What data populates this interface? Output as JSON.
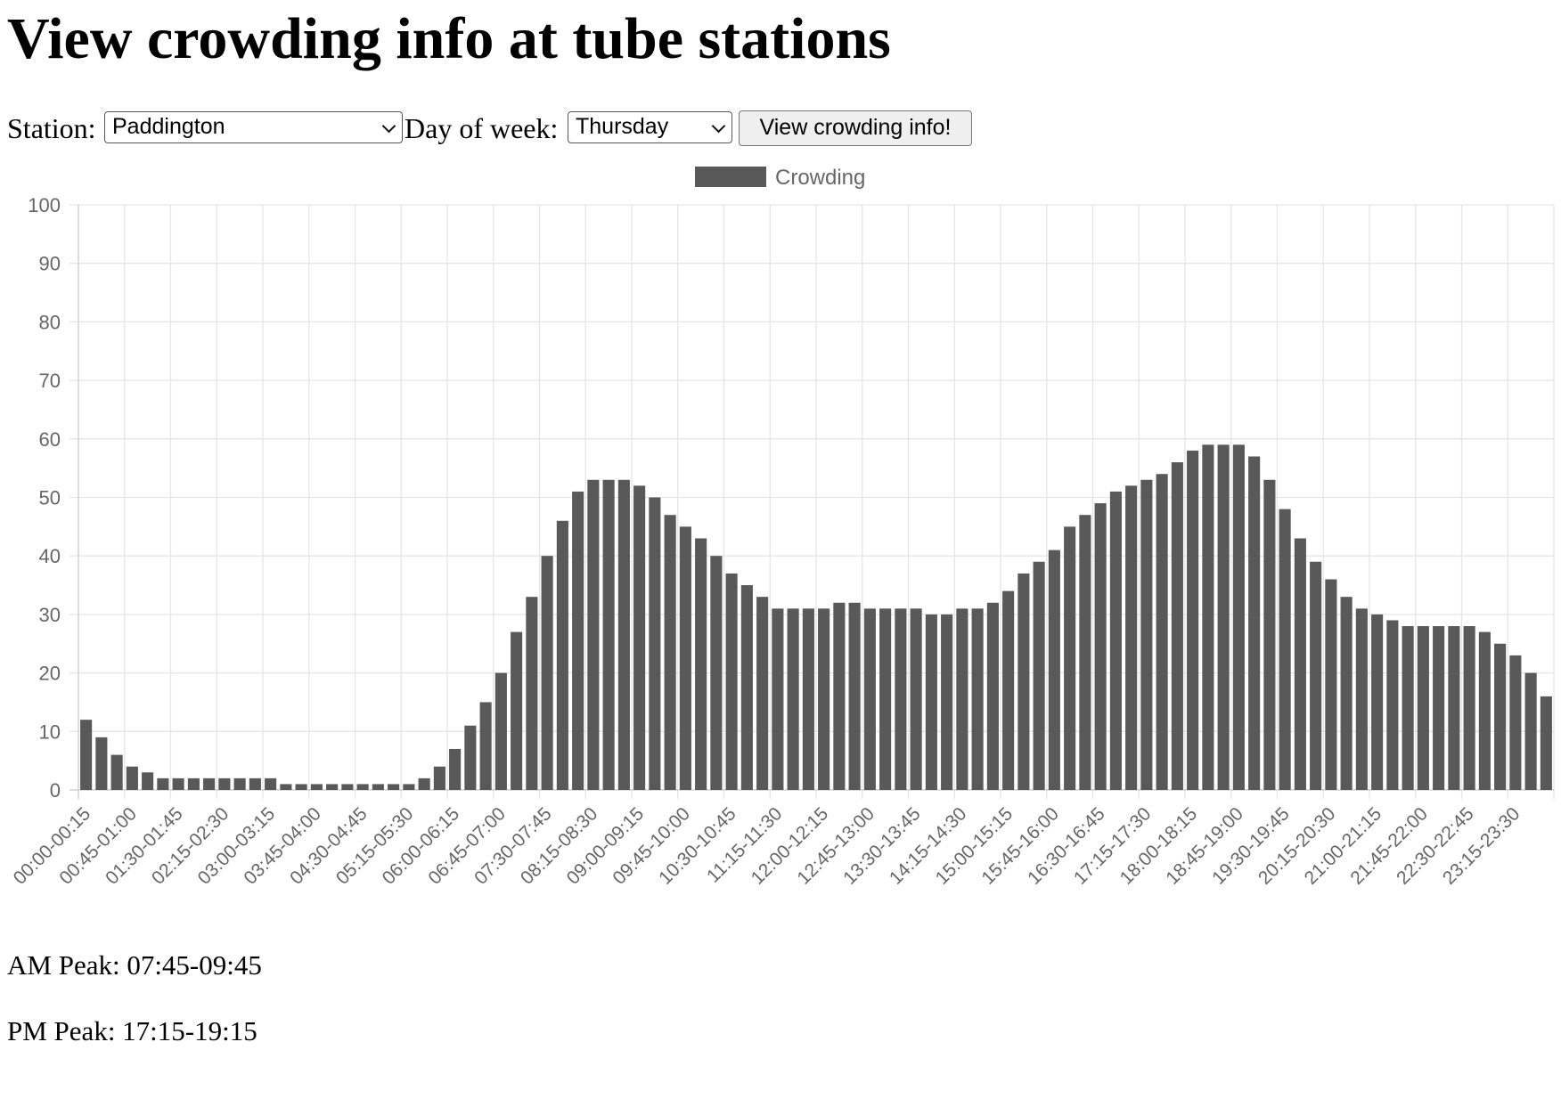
{
  "page": {
    "title": "View crowding info at tube stations"
  },
  "form": {
    "station_label": "Station:",
    "station_value": "Paddington",
    "day_label": "Day of week:",
    "day_value": "Thursday",
    "submit_label": "View crowding info!"
  },
  "peaks": {
    "am": "AM Peak: 07:45-09:45",
    "pm": "PM Peak: 17:15-19:15"
  },
  "colors": {
    "bar": "#595959",
    "grid": "#e5e5e5",
    "axis_text": "#666666"
  },
  "chart_data": {
    "type": "bar",
    "legend": "Crowding",
    "legend_position": "top",
    "grid": true,
    "ylim": [
      0,
      100
    ],
    "yticks": [
      0,
      10,
      20,
      30,
      40,
      50,
      60,
      70,
      80,
      90,
      100
    ],
    "x_tick_every": 3,
    "categories": [
      "00:00-00:15",
      "00:15-00:30",
      "00:30-00:45",
      "00:45-01:00",
      "01:00-01:15",
      "01:15-01:30",
      "01:30-01:45",
      "01:45-02:00",
      "02:00-02:15",
      "02:15-02:30",
      "02:30-02:45",
      "02:45-03:00",
      "03:00-03:15",
      "03:15-03:30",
      "03:30-03:45",
      "03:45-04:00",
      "04:00-04:15",
      "04:15-04:30",
      "04:30-04:45",
      "04:45-05:00",
      "05:00-05:15",
      "05:15-05:30",
      "05:30-05:45",
      "05:45-06:00",
      "06:00-06:15",
      "06:15-06:30",
      "06:30-06:45",
      "06:45-07:00",
      "07:00-07:15",
      "07:15-07:30",
      "07:30-07:45",
      "07:45-08:00",
      "08:00-08:15",
      "08:15-08:30",
      "08:30-08:45",
      "08:45-09:00",
      "09:00-09:15",
      "09:15-09:30",
      "09:30-09:45",
      "09:45-10:00",
      "10:00-10:15",
      "10:15-10:30",
      "10:30-10:45",
      "10:45-11:00",
      "11:00-11:15",
      "11:15-11:30",
      "11:30-11:45",
      "11:45-12:00",
      "12:00-12:15",
      "12:15-12:30",
      "12:30-12:45",
      "12:45-13:00",
      "13:00-13:15",
      "13:15-13:30",
      "13:30-13:45",
      "13:45-14:00",
      "14:00-14:15",
      "14:15-14:30",
      "14:30-14:45",
      "14:45-15:00",
      "15:00-15:15",
      "15:15-15:30",
      "15:30-15:45",
      "15:45-16:00",
      "16:00-16:15",
      "16:15-16:30",
      "16:30-16:45",
      "16:45-17:00",
      "17:00-17:15",
      "17:15-17:30",
      "17:30-17:45",
      "17:45-18:00",
      "18:00-18:15",
      "18:15-18:30",
      "18:30-18:45",
      "18:45-19:00",
      "19:00-19:15",
      "19:15-19:30",
      "19:30-19:45",
      "19:45-20:00",
      "20:00-20:15",
      "20:15-20:30",
      "20:30-20:45",
      "20:45-21:00",
      "21:00-21:15",
      "21:15-21:30",
      "21:30-21:45",
      "21:45-22:00",
      "22:00-22:15",
      "22:15-22:30",
      "22:30-22:45",
      "22:45-23:00",
      "23:00-23:15",
      "23:15-23:30",
      "23:30-23:45",
      "23:45-24:00"
    ],
    "values": [
      12,
      9,
      6,
      4,
      3,
      2,
      2,
      2,
      2,
      2,
      2,
      2,
      2,
      1,
      1,
      1,
      1,
      1,
      1,
      1,
      1,
      1,
      2,
      4,
      7,
      11,
      15,
      20,
      27,
      33,
      40,
      46,
      51,
      53,
      53,
      53,
      52,
      50,
      47,
      45,
      43,
      40,
      37,
      35,
      33,
      31,
      31,
      31,
      31,
      32,
      32,
      31,
      31,
      31,
      31,
      30,
      30,
      31,
      31,
      32,
      34,
      37,
      39,
      41,
      45,
      47,
      49,
      51,
      52,
      53,
      54,
      56,
      58,
      59,
      59,
      59,
      57,
      53,
      48,
      43,
      39,
      36,
      33,
      31,
      30,
      29,
      28,
      28,
      28,
      28,
      28,
      27,
      25,
      23,
      20,
      16
    ]
  }
}
